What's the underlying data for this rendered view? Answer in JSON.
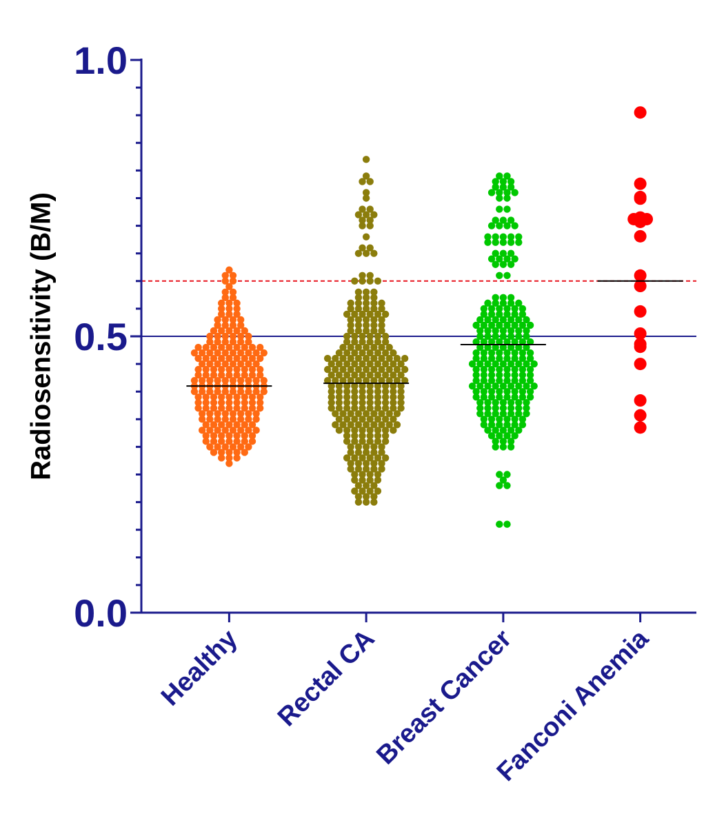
{
  "chart_data": {
    "type": "beeswarm",
    "y_label": "Radiosensitivity (B/M)",
    "ylim": [
      0,
      1
    ],
    "yticks": [
      {
        "value": 0,
        "label": "0.0"
      },
      {
        "value": 0.5,
        "label": "0.5"
      },
      {
        "value": 1,
        "label": "1.0"
      }
    ],
    "yminorticks": [
      0.05,
      0.1,
      0.15,
      0.2,
      0.25,
      0.3,
      0.35,
      0.4,
      0.45,
      0.55,
      0.6,
      0.65,
      0.7,
      0.75,
      0.8,
      0.85,
      0.9,
      0.95
    ],
    "reference_lines": [
      {
        "value": 0.5,
        "color": "#1a1a8c",
        "style": "solid"
      },
      {
        "value": 0.6,
        "color": "#e8141e",
        "style": "dashed"
      }
    ],
    "series": [
      {
        "name": "Healthy",
        "color": "#ff6a13",
        "median": 0.41,
        "values": [
          0.27,
          0.28,
          0.28,
          0.28,
          0.29,
          0.29,
          0.29,
          0.29,
          0.29,
          0.3,
          0.3,
          0.3,
          0.3,
          0.3,
          0.3,
          0.31,
          0.31,
          0.31,
          0.31,
          0.31,
          0.31,
          0.31,
          0.32,
          0.32,
          0.32,
          0.32,
          0.32,
          0.32,
          0.32,
          0.33,
          0.33,
          0.33,
          0.33,
          0.33,
          0.33,
          0.33,
          0.33,
          0.34,
          0.34,
          0.34,
          0.34,
          0.34,
          0.34,
          0.34,
          0.35,
          0.35,
          0.35,
          0.35,
          0.35,
          0.35,
          0.35,
          0.35,
          0.36,
          0.36,
          0.36,
          0.36,
          0.36,
          0.36,
          0.36,
          0.36,
          0.37,
          0.37,
          0.37,
          0.37,
          0.37,
          0.37,
          0.37,
          0.37,
          0.37,
          0.38,
          0.38,
          0.38,
          0.38,
          0.38,
          0.38,
          0.38,
          0.38,
          0.38,
          0.39,
          0.39,
          0.39,
          0.39,
          0.39,
          0.39,
          0.39,
          0.39,
          0.39,
          0.4,
          0.4,
          0.4,
          0.4,
          0.4,
          0.4,
          0.4,
          0.4,
          0.4,
          0.4,
          0.41,
          0.41,
          0.41,
          0.41,
          0.41,
          0.41,
          0.41,
          0.41,
          0.41,
          0.41,
          0.42,
          0.42,
          0.42,
          0.42,
          0.42,
          0.42,
          0.42,
          0.42,
          0.42,
          0.42,
          0.43,
          0.43,
          0.43,
          0.43,
          0.43,
          0.43,
          0.43,
          0.43,
          0.43,
          0.44,
          0.44,
          0.44,
          0.44,
          0.44,
          0.44,
          0.44,
          0.44,
          0.44,
          0.45,
          0.45,
          0.45,
          0.45,
          0.45,
          0.45,
          0.45,
          0.45,
          0.46,
          0.46,
          0.46,
          0.46,
          0.46,
          0.46,
          0.46,
          0.46,
          0.46,
          0.47,
          0.47,
          0.47,
          0.47,
          0.47,
          0.47,
          0.47,
          0.47,
          0.47,
          0.47,
          0.48,
          0.48,
          0.48,
          0.48,
          0.48,
          0.48,
          0.48,
          0.48,
          0.48,
          0.49,
          0.49,
          0.49,
          0.49,
          0.49,
          0.49,
          0.5,
          0.5,
          0.5,
          0.5,
          0.5,
          0.5,
          0.51,
          0.51,
          0.51,
          0.51,
          0.51,
          0.52,
          0.52,
          0.52,
          0.52,
          0.53,
          0.53,
          0.53,
          0.53,
          0.54,
          0.54,
          0.54,
          0.55,
          0.55,
          0.55,
          0.56,
          0.56,
          0.56,
          0.57,
          0.57,
          0.58,
          0.58,
          0.59,
          0.6,
          0.6,
          0.61,
          0.61,
          0.62
        ]
      },
      {
        "name": "Rectal CA",
        "color": "#8b7d0c",
        "median": 0.415,
        "values": [
          0.2,
          0.2,
          0.2,
          0.21,
          0.21,
          0.21,
          0.22,
          0.22,
          0.22,
          0.22,
          0.23,
          0.23,
          0.23,
          0.24,
          0.24,
          0.24,
          0.24,
          0.25,
          0.25,
          0.25,
          0.25,
          0.26,
          0.26,
          0.26,
          0.26,
          0.26,
          0.27,
          0.27,
          0.27,
          0.27,
          0.27,
          0.28,
          0.28,
          0.28,
          0.28,
          0.28,
          0.28,
          0.29,
          0.29,
          0.29,
          0.29,
          0.29,
          0.3,
          0.3,
          0.3,
          0.3,
          0.3,
          0.31,
          0.31,
          0.31,
          0.31,
          0.31,
          0.31,
          0.32,
          0.32,
          0.32,
          0.32,
          0.32,
          0.32,
          0.33,
          0.33,
          0.33,
          0.33,
          0.33,
          0.33,
          0.33,
          0.33,
          0.34,
          0.34,
          0.34,
          0.34,
          0.34,
          0.34,
          0.34,
          0.34,
          0.34,
          0.35,
          0.35,
          0.35,
          0.35,
          0.35,
          0.35,
          0.35,
          0.35,
          0.36,
          0.36,
          0.36,
          0.36,
          0.36,
          0.36,
          0.36,
          0.36,
          0.36,
          0.37,
          0.37,
          0.37,
          0.37,
          0.37,
          0.37,
          0.37,
          0.37,
          0.37,
          0.37,
          0.38,
          0.38,
          0.38,
          0.38,
          0.38,
          0.38,
          0.38,
          0.38,
          0.38,
          0.38,
          0.39,
          0.39,
          0.39,
          0.39,
          0.39,
          0.39,
          0.39,
          0.39,
          0.39,
          0.39,
          0.4,
          0.4,
          0.4,
          0.4,
          0.4,
          0.4,
          0.4,
          0.4,
          0.4,
          0.4,
          0.41,
          0.41,
          0.41,
          0.41,
          0.41,
          0.41,
          0.41,
          0.41,
          0.41,
          0.41,
          0.42,
          0.42,
          0.42,
          0.42,
          0.42,
          0.42,
          0.42,
          0.42,
          0.42,
          0.42,
          0.42,
          0.43,
          0.43,
          0.43,
          0.43,
          0.43,
          0.43,
          0.43,
          0.43,
          0.43,
          0.43,
          0.44,
          0.44,
          0.44,
          0.44,
          0.44,
          0.44,
          0.44,
          0.44,
          0.44,
          0.44,
          0.44,
          0.45,
          0.45,
          0.45,
          0.45,
          0.45,
          0.45,
          0.45,
          0.45,
          0.45,
          0.45,
          0.46,
          0.46,
          0.46,
          0.46,
          0.46,
          0.46,
          0.46,
          0.46,
          0.46,
          0.46,
          0.46,
          0.47,
          0.47,
          0.47,
          0.47,
          0.47,
          0.47,
          0.47,
          0.47,
          0.48,
          0.48,
          0.48,
          0.48,
          0.48,
          0.48,
          0.48,
          0.49,
          0.49,
          0.49,
          0.49,
          0.49,
          0.49,
          0.5,
          0.5,
          0.5,
          0.5,
          0.5,
          0.5,
          0.51,
          0.51,
          0.51,
          0.51,
          0.51,
          0.52,
          0.52,
          0.52,
          0.52,
          0.52,
          0.53,
          0.53,
          0.53,
          0.53,
          0.53,
          0.54,
          0.54,
          0.54,
          0.54,
          0.54,
          0.54,
          0.55,
          0.55,
          0.55,
          0.55,
          0.55,
          0.56,
          0.56,
          0.56,
          0.56,
          0.56,
          0.57,
          0.57,
          0.57,
          0.58,
          0.58,
          0.58,
          0.6,
          0.6,
          0.6,
          0.6,
          0.61,
          0.61,
          0.65,
          0.65,
          0.65,
          0.66,
          0.66,
          0.68,
          0.7,
          0.7,
          0.71,
          0.71,
          0.72,
          0.72,
          0.72,
          0.73,
          0.73,
          0.75,
          0.76,
          0.78,
          0.78,
          0.79,
          0.82
        ]
      },
      {
        "name": "Breast Cancer",
        "color": "#00c800",
        "median": 0.485,
        "values": [
          0.16,
          0.16,
          0.23,
          0.23,
          0.24,
          0.25,
          0.25,
          0.3,
          0.3,
          0.3,
          0.31,
          0.31,
          0.31,
          0.32,
          0.32,
          0.32,
          0.32,
          0.33,
          0.33,
          0.33,
          0.33,
          0.33,
          0.34,
          0.34,
          0.34,
          0.34,
          0.34,
          0.34,
          0.35,
          0.35,
          0.35,
          0.35,
          0.35,
          0.35,
          0.36,
          0.36,
          0.36,
          0.36,
          0.36,
          0.36,
          0.36,
          0.37,
          0.37,
          0.37,
          0.37,
          0.37,
          0.37,
          0.37,
          0.38,
          0.38,
          0.38,
          0.38,
          0.38,
          0.38,
          0.38,
          0.39,
          0.39,
          0.39,
          0.39,
          0.39,
          0.39,
          0.39,
          0.39,
          0.4,
          0.4,
          0.4,
          0.4,
          0.4,
          0.4,
          0.4,
          0.4,
          0.41,
          0.41,
          0.41,
          0.41,
          0.41,
          0.41,
          0.41,
          0.41,
          0.41,
          0.42,
          0.42,
          0.42,
          0.42,
          0.42,
          0.42,
          0.42,
          0.42,
          0.43,
          0.43,
          0.43,
          0.43,
          0.43,
          0.43,
          0.43,
          0.43,
          0.44,
          0.44,
          0.44,
          0.44,
          0.44,
          0.44,
          0.44,
          0.44,
          0.45,
          0.45,
          0.45,
          0.45,
          0.45,
          0.45,
          0.45,
          0.45,
          0.45,
          0.46,
          0.46,
          0.46,
          0.46,
          0.46,
          0.46,
          0.46,
          0.46,
          0.47,
          0.47,
          0.47,
          0.47,
          0.47,
          0.47,
          0.47,
          0.47,
          0.48,
          0.48,
          0.48,
          0.48,
          0.48,
          0.48,
          0.48,
          0.49,
          0.49,
          0.49,
          0.49,
          0.49,
          0.49,
          0.49,
          0.49,
          0.5,
          0.5,
          0.5,
          0.5,
          0.5,
          0.5,
          0.5,
          0.51,
          0.51,
          0.51,
          0.51,
          0.51,
          0.51,
          0.51,
          0.52,
          0.52,
          0.52,
          0.52,
          0.52,
          0.52,
          0.52,
          0.52,
          0.53,
          0.53,
          0.53,
          0.53,
          0.53,
          0.53,
          0.53,
          0.54,
          0.54,
          0.54,
          0.54,
          0.54,
          0.54,
          0.55,
          0.55,
          0.55,
          0.55,
          0.55,
          0.55,
          0.56,
          0.56,
          0.56,
          0.56,
          0.56,
          0.57,
          0.57,
          0.57,
          0.61,
          0.61,
          0.63,
          0.63,
          0.63,
          0.64,
          0.64,
          0.64,
          0.64,
          0.65,
          0.65,
          0.65,
          0.67,
          0.67,
          0.67,
          0.67,
          0.67,
          0.68,
          0.68,
          0.68,
          0.68,
          0.68,
          0.7,
          0.7,
          0.7,
          0.7,
          0.71,
          0.71,
          0.71,
          0.73,
          0.73,
          0.75,
          0.75,
          0.76,
          0.76,
          0.76,
          0.76,
          0.77,
          0.77,
          0.77,
          0.78,
          0.78,
          0.78,
          0.79,
          0.79
        ]
      },
      {
        "name": "Fanconi Anemia",
        "color": "#ff0000",
        "median": 0.6,
        "values": [
          0.905,
          0.776,
          0.752,
          0.749,
          0.712,
          0.707,
          0.715,
          0.712,
          0.681,
          0.61,
          0.591,
          0.545,
          0.505,
          0.486,
          0.481,
          0.45,
          0.384,
          0.357,
          0.335
        ]
      }
    ]
  }
}
